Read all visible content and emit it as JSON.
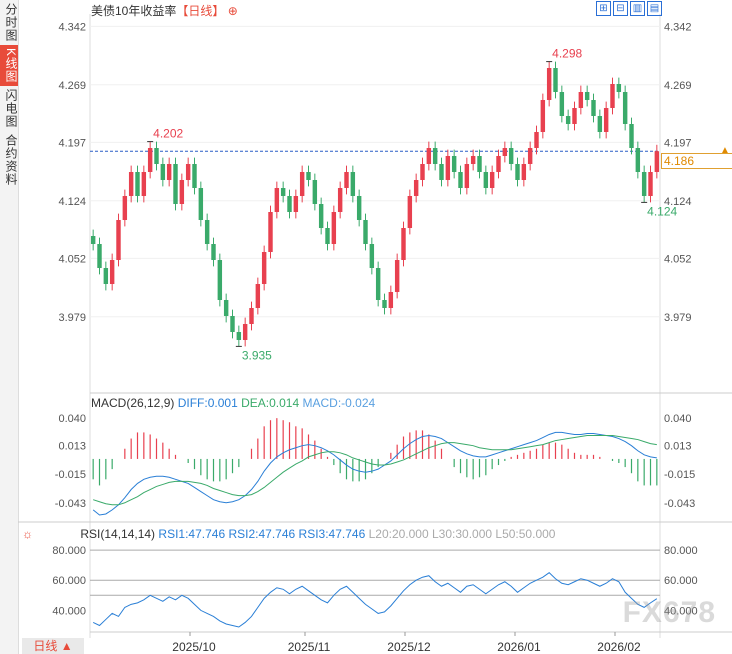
{
  "side_tabs": [
    {
      "label": "分时图",
      "active": false
    },
    {
      "label": "K线图",
      "active": true
    },
    {
      "label": "闪电图",
      "active": false
    },
    {
      "label": "合约资料",
      "active": false
    }
  ],
  "header": {
    "title": "美债10年收益率",
    "period_tag": "【日线】",
    "add_icon": "⊕",
    "toolbar_icons": [
      "expand-icon",
      "shrink-icon",
      "chart-type-icon",
      "close-panel-icon"
    ]
  },
  "last_price_tag": "4.186",
  "bottom_period": "日线 ▲",
  "watermark": "FX678",
  "colors": {
    "up": "#e8404f",
    "down": "#3aaa6a",
    "diff": "#2a7fd6",
    "dea": "#3aaa6a",
    "rsi": "#2a7fd6",
    "refline": "#2a5fc6"
  },
  "chart_data": [
    {
      "type": "candlestick",
      "title": "美债10年收益率",
      "ylim": [
        3.9,
        4.35
      ],
      "y_ticks": [
        "4.342",
        "4.269",
        "4.197",
        "4.124",
        "4.052",
        "3.979"
      ],
      "x_ticks": [
        "2025/10",
        "2025/11",
        "2025/12",
        "2026/01",
        "2026/02"
      ],
      "annotations": [
        {
          "label": "4.298",
          "kind": "high"
        },
        {
          "label": "4.202",
          "kind": "high"
        },
        {
          "label": "3.935",
          "kind": "low"
        },
        {
          "label": "4.124",
          "kind": "low"
        }
      ],
      "reference_line": 4.186,
      "closes": [
        4.07,
        4.04,
        4.02,
        4.05,
        4.1,
        4.13,
        4.16,
        4.13,
        4.16,
        4.19,
        4.17,
        4.15,
        4.17,
        4.12,
        4.15,
        4.17,
        4.14,
        4.1,
        4.07,
        4.05,
        4.0,
        3.98,
        3.96,
        3.95,
        3.97,
        3.99,
        4.02,
        4.06,
        4.11,
        4.14,
        4.13,
        4.11,
        4.13,
        4.16,
        4.15,
        4.12,
        4.09,
        4.07,
        4.11,
        4.14,
        4.16,
        4.13,
        4.1,
        4.07,
        4.04,
        4.0,
        3.99,
        4.01,
        4.05,
        4.09,
        4.13,
        4.15,
        4.17,
        4.19,
        4.17,
        4.15,
        4.18,
        4.16,
        4.14,
        4.17,
        4.18,
        4.16,
        4.14,
        4.16,
        4.18,
        4.19,
        4.17,
        4.15,
        4.17,
        4.19,
        4.21,
        4.25,
        4.29,
        4.26,
        4.23,
        4.22,
        4.24,
        4.26,
        4.25,
        4.23,
        4.21,
        4.24,
        4.27,
        4.26,
        4.22,
        4.19,
        4.16,
        4.13,
        4.16,
        4.186
      ]
    },
    {
      "type": "bar",
      "title": "MACD(26,12,9)",
      "series_labels": {
        "diff": "DIFF:0.001",
        "dea": "DEA:0.014",
        "macd": "MACD:-0.024"
      },
      "ylim": [
        -0.055,
        0.048
      ],
      "y_ticks": [
        "0.040",
        "0.013",
        "-0.015",
        "-0.043"
      ],
      "diff": [
        -0.05,
        -0.055,
        -0.054,
        -0.05,
        -0.045,
        -0.038,
        -0.03,
        -0.024,
        -0.02,
        -0.018,
        -0.017,
        -0.017,
        -0.018,
        -0.02,
        -0.022,
        -0.024,
        -0.028,
        -0.032,
        -0.036,
        -0.04,
        -0.042,
        -0.043,
        -0.042,
        -0.04,
        -0.036,
        -0.03,
        -0.022,
        -0.012,
        -0.004,
        0.002,
        0.006,
        0.009,
        0.011,
        0.013,
        0.014,
        0.013,
        0.011,
        0.008,
        0.004,
        -0.001,
        -0.006,
        -0.01,
        -0.012,
        -0.013,
        -0.012,
        -0.01,
        -0.006,
        -0.002,
        0.004,
        0.01,
        0.015,
        0.019,
        0.022,
        0.023,
        0.022,
        0.02,
        0.016,
        0.012,
        0.008,
        0.005,
        0.003,
        0.002,
        0.002,
        0.004,
        0.006,
        0.008,
        0.01,
        0.012,
        0.014,
        0.016,
        0.018,
        0.021,
        0.024,
        0.026,
        0.026,
        0.025,
        0.024,
        0.024,
        0.025,
        0.025,
        0.024,
        0.023,
        0.022,
        0.02,
        0.017,
        0.013,
        0.008,
        0.004,
        0.002,
        0.001
      ],
      "dea": [
        -0.04,
        -0.042,
        -0.044,
        -0.045,
        -0.045,
        -0.043,
        -0.04,
        -0.037,
        -0.033,
        -0.03,
        -0.027,
        -0.025,
        -0.023,
        -0.022,
        -0.022,
        -0.022,
        -0.023,
        -0.024,
        -0.026,
        -0.029,
        -0.031,
        -0.033,
        -0.035,
        -0.036,
        -0.036,
        -0.035,
        -0.032,
        -0.028,
        -0.023,
        -0.018,
        -0.013,
        -0.009,
        -0.005,
        -0.002,
        0.002,
        0.004,
        0.006,
        0.007,
        0.007,
        0.006,
        0.004,
        0.001,
        -0.001,
        -0.003,
        -0.005,
        -0.006,
        -0.006,
        -0.005,
        -0.003,
        -0.001,
        0.002,
        0.005,
        0.008,
        0.011,
        0.013,
        0.015,
        0.016,
        0.016,
        0.015,
        0.014,
        0.013,
        0.011,
        0.01,
        0.009,
        0.009,
        0.009,
        0.009,
        0.01,
        0.011,
        0.012,
        0.013,
        0.014,
        0.016,
        0.018,
        0.019,
        0.02,
        0.021,
        0.022,
        0.023,
        0.023,
        0.023,
        0.023,
        0.023,
        0.022,
        0.021,
        0.02,
        0.019,
        0.017,
        0.015,
        0.014
      ]
    },
    {
      "type": "line",
      "title": "RSI(14,14,14)",
      "series_labels": [
        "RSI1:47.746",
        "RSI2:47.746",
        "RSI3:47.746",
        "L20:20.000",
        "L30:30.000",
        "L50:50.000"
      ],
      "ylim": [
        27,
        88
      ],
      "y_ticks": [
        "80.000",
        "60.000",
        "40.000"
      ],
      "reference_levels": [
        80,
        60,
        50
      ],
      "values": [
        32,
        30,
        34,
        38,
        36,
        42,
        44,
        45,
        47,
        50,
        48,
        46,
        49,
        47,
        50,
        48,
        44,
        40,
        38,
        36,
        33,
        31,
        30,
        29,
        32,
        36,
        42,
        48,
        52,
        55,
        54,
        51,
        54,
        56,
        53,
        50,
        47,
        45,
        50,
        54,
        56,
        52,
        48,
        44,
        41,
        38,
        39,
        43,
        48,
        53,
        57,
        60,
        62,
        63,
        59,
        56,
        58,
        55,
        52,
        56,
        57,
        54,
        51,
        54,
        57,
        59,
        56,
        52,
        55,
        58,
        60,
        62,
        65,
        61,
        58,
        57,
        59,
        61,
        60,
        58,
        56,
        58,
        61,
        59,
        52,
        48,
        44,
        42,
        45,
        47.746
      ]
    }
  ]
}
